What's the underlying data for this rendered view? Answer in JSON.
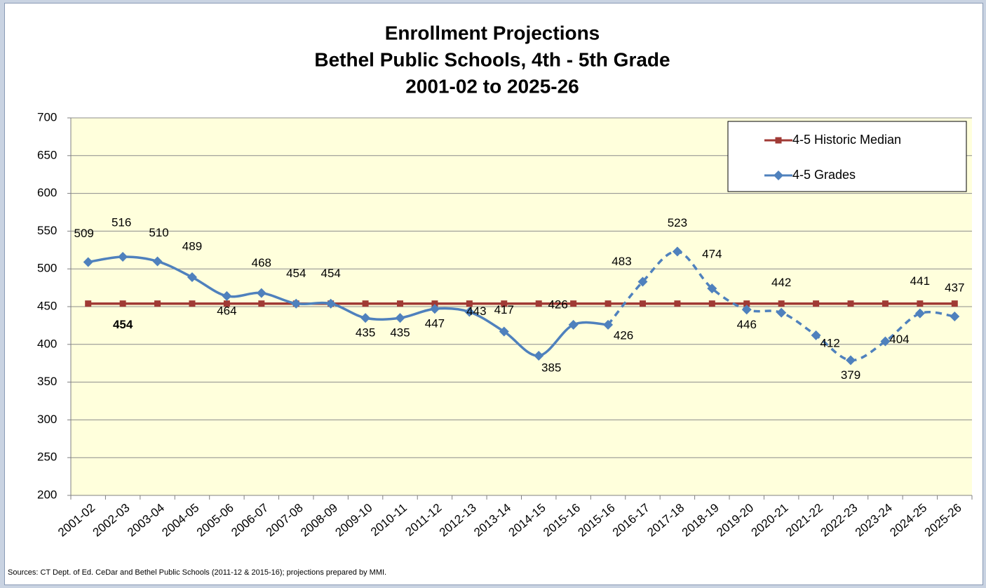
{
  "chart_data": {
    "type": "line",
    "title": [
      "Enrollment Projections",
      "Bethel Public Schools, 4th - 5th Grade",
      "2001-02 to 2025-26"
    ],
    "categories": [
      "2001-02",
      "2002-03",
      "2003-04",
      "2004-05",
      "2005-06",
      "2006-07",
      "2007-08",
      "2008-09",
      "2009-10",
      "2010-11",
      "2011-12",
      "2012-13",
      "2013-14",
      "2014-15",
      "2015-16",
      "2015-16",
      "2016-17",
      "2017-18",
      "2018-19",
      "2019-20",
      "2020-21",
      "2021-22",
      "2022-23",
      "2023-24",
      "2024-25",
      "2025-26"
    ],
    "series": [
      {
        "name": "4-5 Historic Median",
        "color": "#a03a35",
        "marker": "square",
        "values": [
          454,
          454,
          454,
          454,
          454,
          454,
          454,
          454,
          454,
          454,
          454,
          454,
          454,
          454,
          454,
          454,
          454,
          454,
          454,
          454,
          454,
          454,
          454,
          454,
          454,
          454
        ]
      },
      {
        "name": "4-5 Grades",
        "color": "#4f81bd",
        "marker": "diamond",
        "smooth": true,
        "dash_from_index": 15,
        "values": [
          509,
          516,
          510,
          489,
          464,
          468,
          454,
          454,
          435,
          435,
          447,
          443,
          417,
          385,
          426,
          426,
          483,
          523,
          474,
          446,
          442,
          412,
          379,
          404,
          441,
          437
        ]
      }
    ],
    "ylim": [
      200,
      700
    ],
    "yticks": [
      200,
      250,
      300,
      350,
      400,
      450,
      500,
      550,
      600,
      650,
      700
    ],
    "grid": true,
    "legend": "top-right",
    "plot_background": "#ffffdc",
    "source": "Sources: CT Dept. of Ed. CeDar and Bethel Public Schools (2011-12 & 2015-16); projections prepared by MMI."
  }
}
